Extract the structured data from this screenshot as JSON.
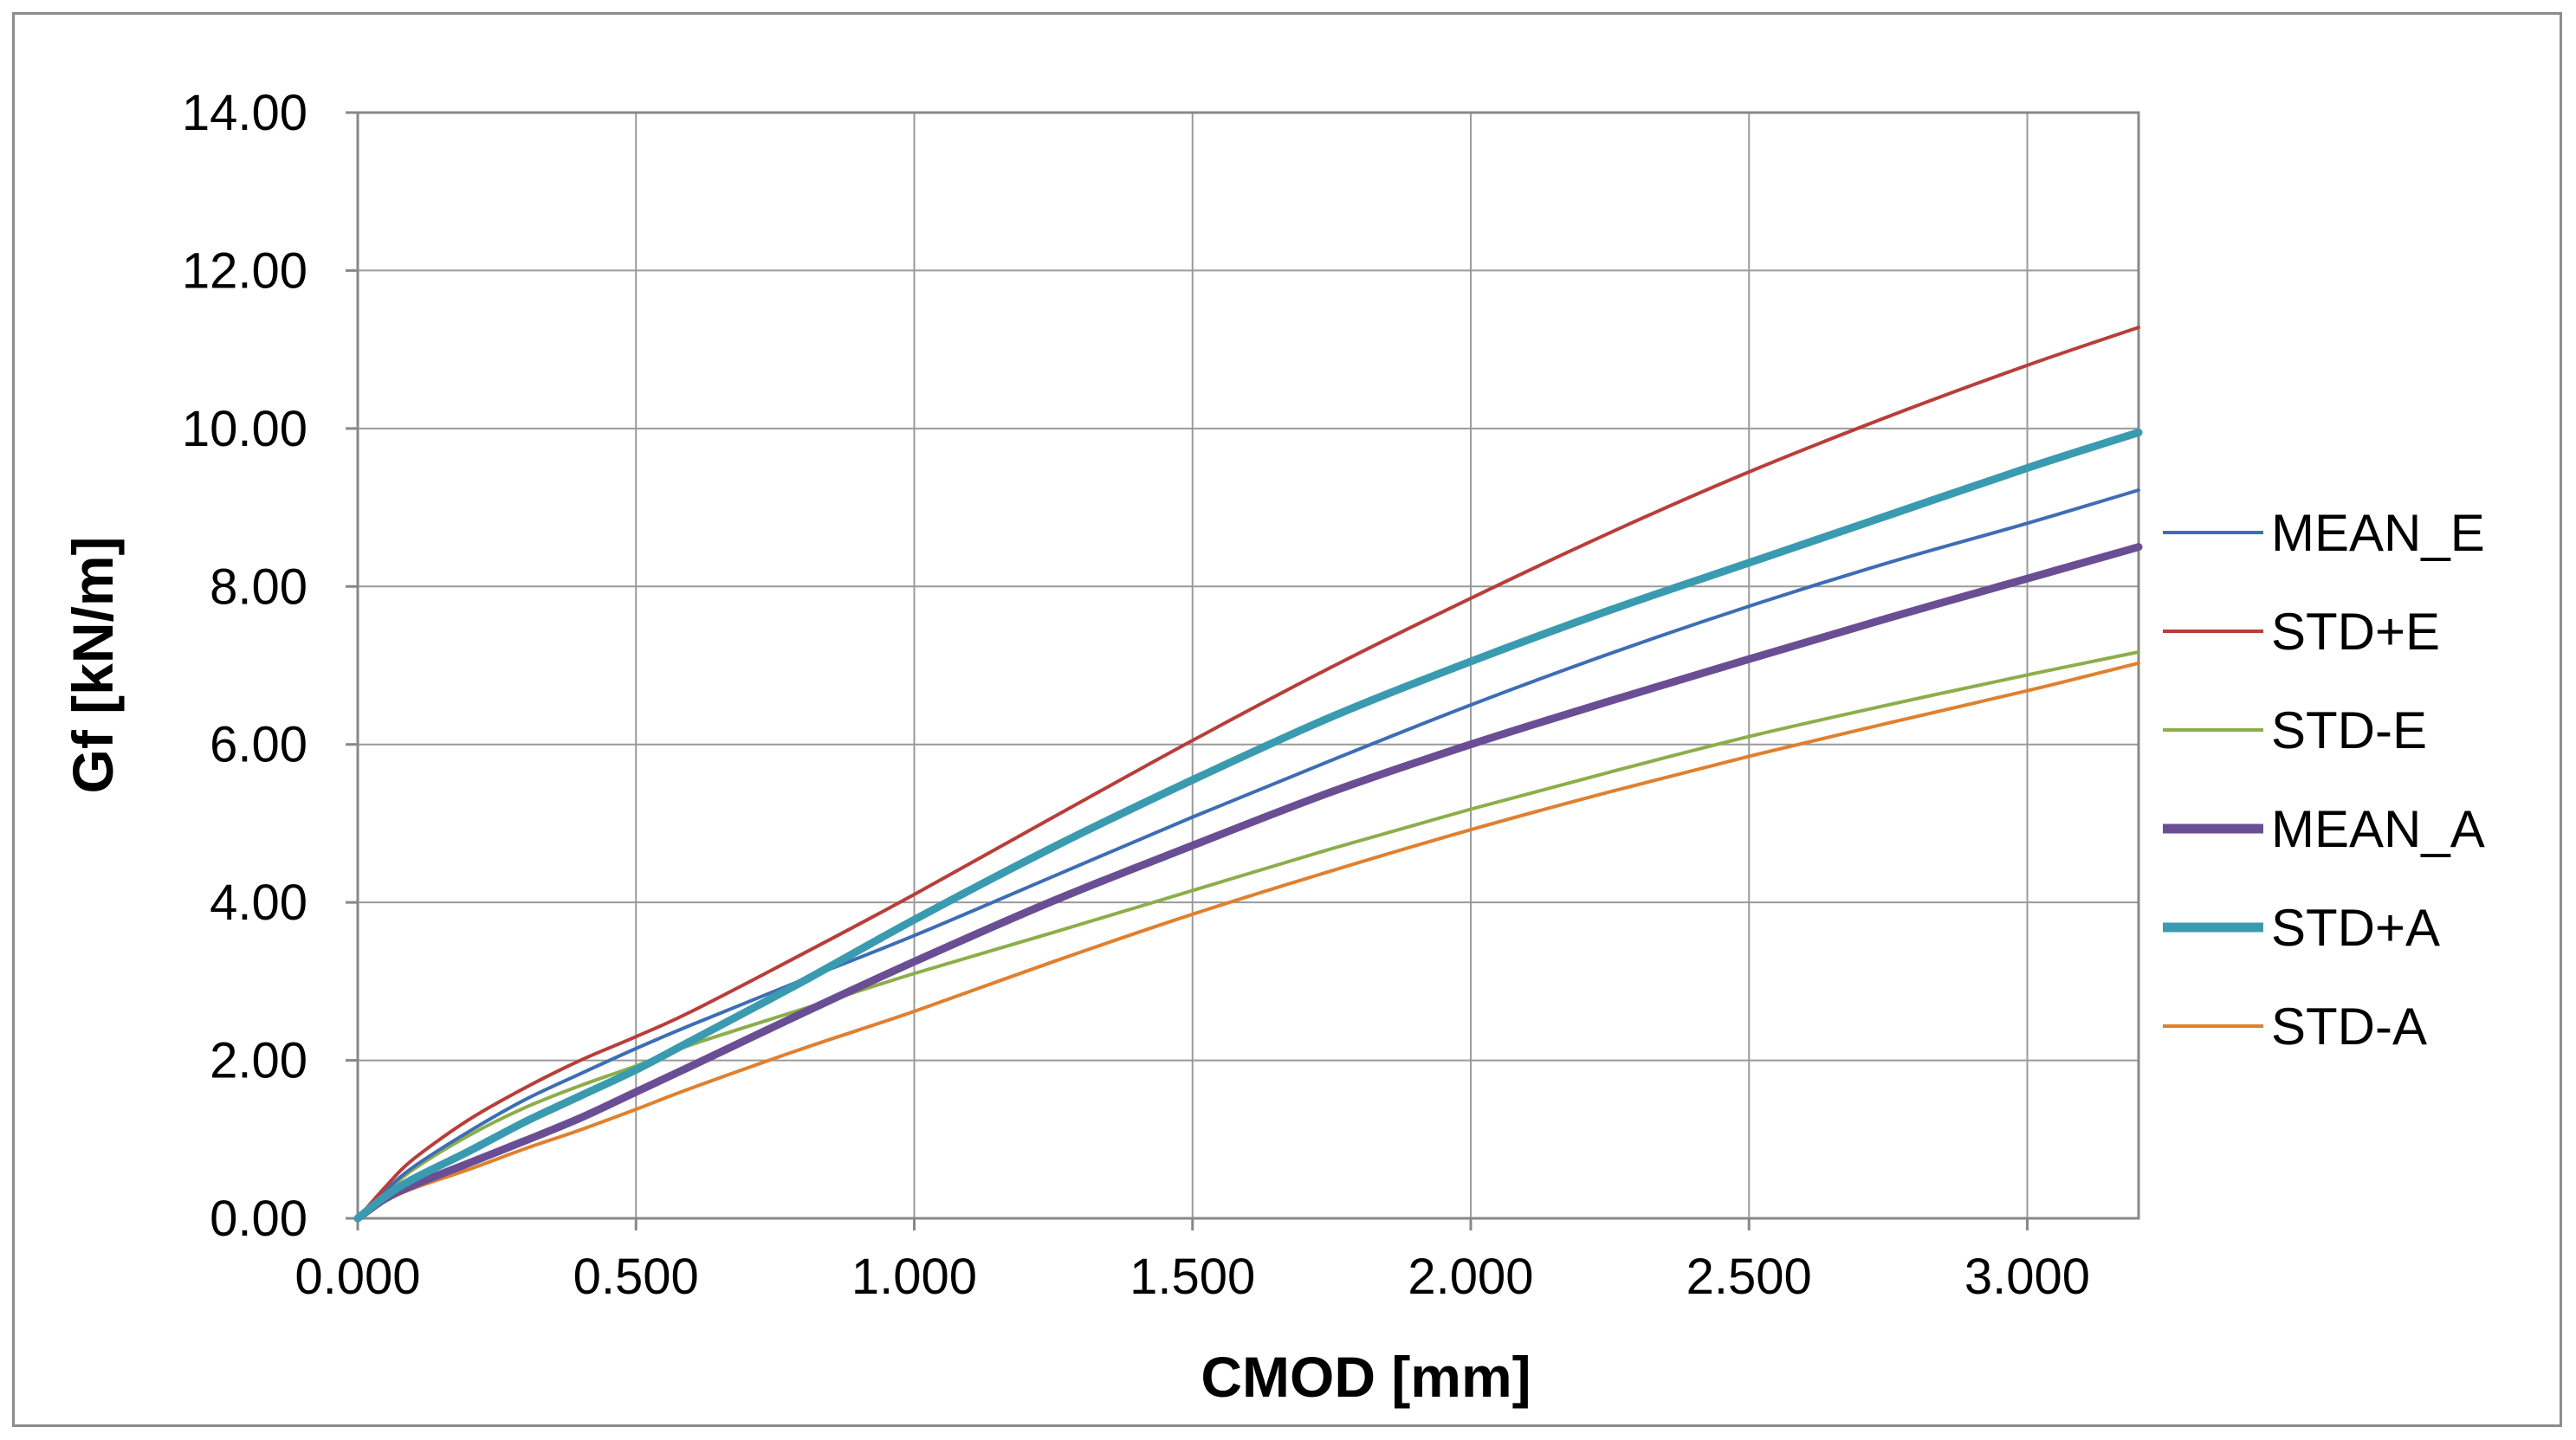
{
  "chart_data": {
    "type": "line",
    "title": "",
    "xlabel": "CMOD [mm]",
    "ylabel": "Gf [kN/m]",
    "xlim": [
      0,
      3.2
    ],
    "ylim": [
      0,
      14
    ],
    "x_ticks": [
      0,
      0.5,
      1.0,
      1.5,
      2.0,
      2.5,
      3.0
    ],
    "x_tick_labels": [
      "0.000",
      "0.500",
      "1.000",
      "1.500",
      "2.000",
      "2.500",
      "3.000"
    ],
    "y_ticks": [
      0,
      2,
      4,
      6,
      8,
      10,
      12,
      14
    ],
    "y_tick_labels": [
      "0.00",
      "2.00",
      "4.00",
      "6.00",
      "8.00",
      "10.00",
      "12.00",
      "14.00"
    ],
    "grid": true,
    "legend_position": "right",
    "series": [
      {
        "name": "MEAN_E",
        "color": "#3d6db5",
        "weight": "thin",
        "x": [
          0,
          0.05,
          0.1,
          0.2,
          0.3,
          0.4,
          0.5,
          0.6,
          0.8,
          1.0,
          1.25,
          1.5,
          1.75,
          2.0,
          2.25,
          2.5,
          2.75,
          3.0,
          3.2
        ],
        "y": [
          0,
          0.35,
          0.65,
          1.1,
          1.5,
          1.83,
          2.15,
          2.45,
          3.02,
          3.58,
          4.33,
          5.08,
          5.8,
          6.5,
          7.15,
          7.75,
          8.3,
          8.8,
          9.22
        ]
      },
      {
        "name": "STD+E",
        "color": "#b83e3a",
        "weight": "thin",
        "x": [
          0,
          0.05,
          0.1,
          0.2,
          0.3,
          0.4,
          0.5,
          0.6,
          0.8,
          1.0,
          1.25,
          1.5,
          1.75,
          2.0,
          2.25,
          2.5,
          2.75,
          3.0,
          3.2
        ],
        "y": [
          0,
          0.4,
          0.75,
          1.25,
          1.65,
          2.0,
          2.3,
          2.62,
          3.35,
          4.1,
          5.08,
          6.05,
          6.98,
          7.85,
          8.68,
          9.45,
          10.15,
          10.8,
          11.28
        ]
      },
      {
        "name": "STD-E",
        "color": "#8cae4a",
        "weight": "thin",
        "x": [
          0,
          0.05,
          0.1,
          0.2,
          0.3,
          0.4,
          0.5,
          0.6,
          0.8,
          1.0,
          1.25,
          1.5,
          1.75,
          2.0,
          2.25,
          2.5,
          2.75,
          3.0,
          3.2
        ],
        "y": [
          0,
          0.33,
          0.62,
          1.05,
          1.4,
          1.68,
          1.93,
          2.2,
          2.65,
          3.1,
          3.62,
          4.15,
          4.68,
          5.18,
          5.65,
          6.1,
          6.5,
          6.88,
          7.17
        ]
      },
      {
        "name": "MEAN_A",
        "color": "#6a4e94",
        "weight": "thick",
        "x": [
          0,
          0.05,
          0.1,
          0.2,
          0.3,
          0.4,
          0.5,
          0.6,
          0.8,
          1.0,
          1.25,
          1.5,
          1.75,
          2.0,
          2.25,
          2.5,
          2.75,
          3.0,
          3.2
        ],
        "y": [
          0,
          0.25,
          0.42,
          0.7,
          0.98,
          1.27,
          1.6,
          1.93,
          2.6,
          3.25,
          4.02,
          4.72,
          5.4,
          6.0,
          6.55,
          7.08,
          7.6,
          8.1,
          8.5
        ]
      },
      {
        "name": "STD+A",
        "color": "#3a9bb0",
        "weight": "thick",
        "x": [
          0,
          0.05,
          0.1,
          0.2,
          0.3,
          0.4,
          0.5,
          0.6,
          0.8,
          1.0,
          1.25,
          1.5,
          1.75,
          2.0,
          2.25,
          2.5,
          2.75,
          3.0,
          3.2
        ],
        "y": [
          0,
          0.28,
          0.5,
          0.85,
          1.22,
          1.55,
          1.88,
          2.25,
          3.0,
          3.78,
          4.7,
          5.55,
          6.35,
          7.05,
          7.7,
          8.3,
          8.9,
          9.5,
          9.95
        ]
      },
      {
        "name": "STD-A",
        "color": "#e0802f",
        "weight": "thin",
        "x": [
          0,
          0.05,
          0.1,
          0.2,
          0.3,
          0.4,
          0.5,
          0.6,
          0.8,
          1.0,
          1.25,
          1.5,
          1.75,
          2.0,
          2.25,
          2.5,
          2.75,
          3.0,
          3.2
        ],
        "y": [
          0,
          0.22,
          0.38,
          0.62,
          0.88,
          1.12,
          1.38,
          1.65,
          2.15,
          2.62,
          3.25,
          3.85,
          4.4,
          4.92,
          5.4,
          5.85,
          6.27,
          6.68,
          7.03
        ]
      }
    ]
  }
}
